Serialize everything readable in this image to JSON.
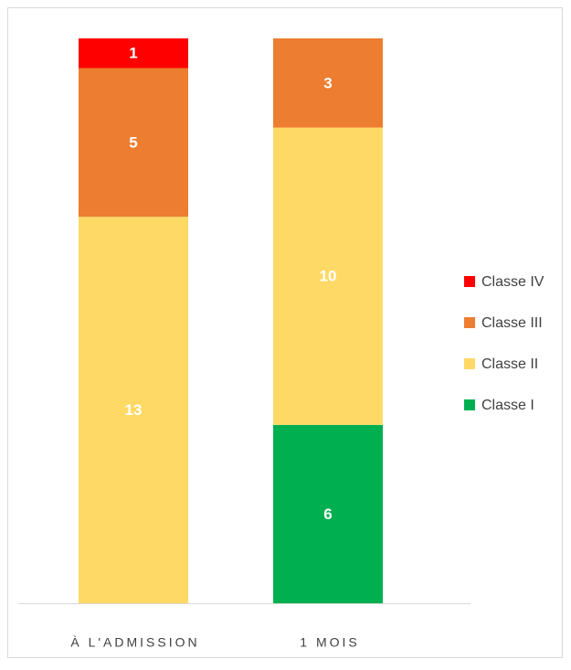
{
  "chart_data": {
    "type": "stacked_bar",
    "categories": [
      "À L'ADMISSION",
      "1 MOIS"
    ],
    "series": [
      {
        "name": "Classe I",
        "color": "#00b050",
        "values": [
          0,
          6
        ]
      },
      {
        "name": "Classe II",
        "color": "#ffd966",
        "values": [
          13,
          10
        ]
      },
      {
        "name": "Classe III",
        "color": "#ed7d31",
        "values": [
          5,
          3
        ]
      },
      {
        "name": "Classe IV",
        "color": "#ff0000",
        "values": [
          1,
          0
        ]
      }
    ],
    "legend": "right"
  }
}
